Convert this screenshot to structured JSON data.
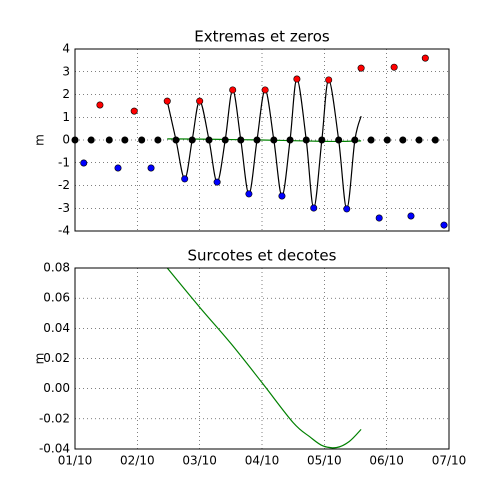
{
  "chart_data": [
    {
      "type": "line",
      "title": "Extremas et zeros",
      "ylabel": "m",
      "xlim": [
        0,
        6
      ],
      "xticks": [
        0,
        1,
        2,
        3,
        4,
        5,
        6
      ],
      "ylim": [
        -4,
        4
      ],
      "yticks": [
        4,
        3,
        2,
        1,
        0,
        -1,
        -2,
        -3,
        -4
      ],
      "grid": true,
      "series": [
        {
          "color": "#000000",
          "marker": false,
          "x": [
            1.48,
            1.62,
            1.76,
            1.88,
            2.0,
            2.15,
            2.28,
            2.41,
            2.53,
            2.66,
            2.79,
            2.92,
            3.05,
            3.19,
            3.32,
            3.45,
            3.56,
            3.71,
            3.83,
            3.96,
            4.07,
            4.23,
            4.36,
            4.49,
            4.59
          ],
          "values": [
            1.71,
            0,
            -1.71,
            0,
            1.71,
            0,
            -1.85,
            0,
            2.2,
            0,
            -2.37,
            0,
            2.2,
            0,
            -2.46,
            0,
            2.68,
            0,
            -2.99,
            0,
            2.64,
            0,
            -3.03,
            0,
            1.05
          ]
        },
        {
          "color": "#008000",
          "marker": false,
          "x": [
            1.48,
            2.0,
            2.5,
            3.0,
            3.5,
            4.0,
            4.3,
            4.59
          ],
          "values": [
            0.05,
            0.04,
            0.02,
            0,
            -0.03,
            -0.06,
            -0.06,
            -0.04
          ]
        },
        {
          "color": "#ff0000",
          "marker": true,
          "x": [
            0.4,
            0.95,
            1.48,
            2.0,
            2.53,
            3.05,
            3.56,
            4.07,
            4.59,
            5.12,
            5.62
          ],
          "values": [
            1.54,
            1.27,
            1.71,
            1.71,
            2.2,
            2.2,
            2.68,
            2.64,
            3.16,
            3.2,
            3.6
          ]
        },
        {
          "color": "#0000ff",
          "marker": true,
          "x": [
            0.14,
            0.69,
            1.22,
            1.76,
            2.28,
            2.79,
            3.32,
            3.83,
            4.36,
            4.88,
            5.39,
            5.92
          ],
          "values": [
            -1.01,
            -1.23,
            -1.23,
            -1.71,
            -1.85,
            -2.37,
            -2.46,
            -2.99,
            -3.03,
            -3.43,
            -3.34,
            -3.74
          ]
        },
        {
          "color": "#000000",
          "marker": true,
          "x": [
            0,
            0.26,
            0.55,
            0.8,
            1.07,
            1.33,
            1.62,
            1.88,
            2.15,
            2.41,
            2.66,
            2.92,
            3.19,
            3.45,
            3.71,
            3.96,
            4.23,
            4.49,
            4.75,
            5.01,
            5.26,
            5.52,
            5.78
          ],
          "values": [
            0,
            0,
            0,
            0,
            0,
            0,
            0,
            0,
            0,
            0,
            0,
            0,
            0,
            0,
            0,
            0,
            0,
            0,
            0,
            0,
            0,
            0,
            0
          ]
        }
      ]
    },
    {
      "type": "line",
      "title": "Surcotes et decotes",
      "ylabel": "m",
      "xlim": [
        0,
        6
      ],
      "xticks": [
        {
          "value": 0,
          "label": "01/10"
        },
        {
          "value": 1,
          "label": "02/10"
        },
        {
          "value": 2,
          "label": "03/10"
        },
        {
          "value": 3,
          "label": "04/10"
        },
        {
          "value": 4,
          "label": "05/10"
        },
        {
          "value": 5,
          "label": "06/10"
        },
        {
          "value": 6,
          "label": "07/10"
        }
      ],
      "ylim": [
        -0.04,
        0.08
      ],
      "yticks": [
        0.08,
        0.06,
        0.04,
        0.02,
        {
          "value": 0,
          "label": "0.00"
        },
        -0.02,
        -0.04
      ],
      "grid": true,
      "series": [
        {
          "color": "#008000",
          "marker": false,
          "x": [
            1.48,
            2.0,
            2.5,
            3.0,
            3.5,
            3.77,
            3.98,
            4.2,
            4.4,
            4.59
          ],
          "values": [
            0.08,
            0.054,
            0.03,
            0.004,
            -0.0225,
            -0.032,
            -0.038,
            -0.039,
            -0.035,
            -0.027
          ]
        }
      ]
    }
  ]
}
